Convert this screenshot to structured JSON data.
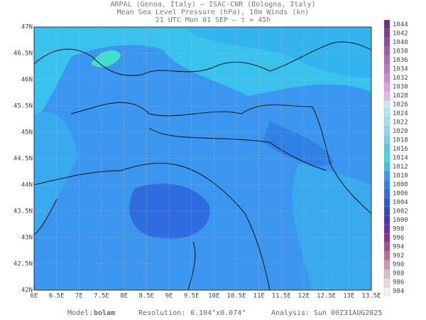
{
  "header": {
    "line1": "ARPAL (Genoa, Italy)  –  ISAC-CNR (Bologna, Italy)",
    "line2": "Mean Sea Level Pressure (hPa), 10m Winds (kn)",
    "line3": "21 UTC Mon 01 SEP  –  τ = 45h"
  },
  "map": {
    "lon_labels": [
      "6E",
      "6.5E",
      "7E",
      "7.5E",
      "8E",
      "8.5E",
      "9E",
      "9.5E",
      "10E",
      "10.5E",
      "11E",
      "11.5E",
      "12E",
      "12.5E",
      "13E",
      "13.5E"
    ],
    "lat_labels": [
      "47N",
      "46.5N",
      "46N",
      "45.5N",
      "45N",
      "44.5N",
      "44N",
      "43.5N",
      "43N",
      "42.5N",
      "42N"
    ]
  },
  "colorbar": {
    "levels": [
      1044,
      1042,
      1040,
      1038,
      1036,
      1034,
      1032,
      1030,
      1028,
      1026,
      1024,
      1022,
      1020,
      1018,
      1016,
      1014,
      1012,
      1010,
      1008,
      1006,
      1004,
      1002,
      1000,
      998,
      996,
      994,
      992,
      990,
      988,
      986,
      984
    ]
  },
  "footer": {
    "model_label": "Model:",
    "model": "bolam",
    "resolution_label": "Resolution:",
    "resolution": "0.104°x0.074°",
    "analysis_label": "Analysis:",
    "analysis": "Sun 00Z31AUG2025"
  }
}
